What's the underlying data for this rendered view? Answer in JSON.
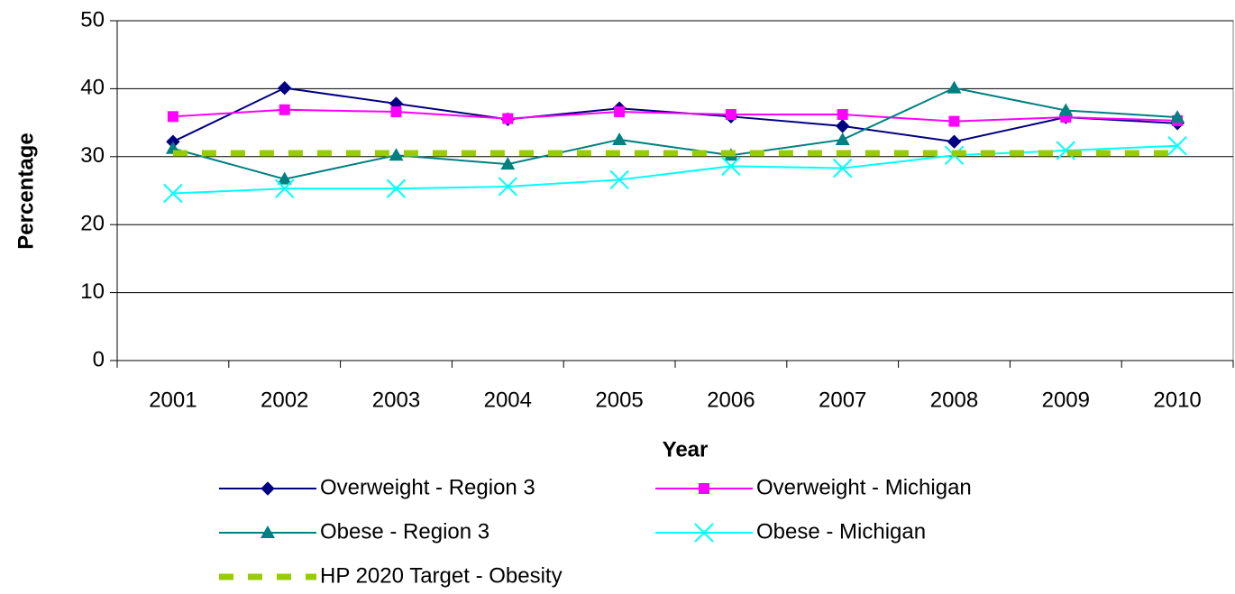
{
  "chart_data": {
    "type": "line",
    "x_label": "Year",
    "y_label": "Percentage",
    "categories": [
      "2001",
      "2002",
      "2003",
      "2004",
      "2005",
      "2006",
      "2007",
      "2008",
      "2009",
      "2010"
    ],
    "series": [
      {
        "name": "Overweight - Region 3",
        "color": "#000080",
        "marker": "diamond",
        "dash": false,
        "values": [
          32.2,
          40.1,
          37.8,
          35.5,
          37.1,
          35.9,
          34.5,
          32.2,
          35.8,
          34.9
        ]
      },
      {
        "name": "Overweight - Michigan",
        "color": "#ff00ff",
        "marker": "square",
        "dash": false,
        "values": [
          35.9,
          36.9,
          36.6,
          35.6,
          36.6,
          36.2,
          36.2,
          35.2,
          35.8,
          35.3
        ]
      },
      {
        "name": "Obese - Region 3",
        "color": "#008080",
        "marker": "triangle",
        "dash": false,
        "values": [
          31.2,
          26.7,
          30.2,
          28.9,
          32.5,
          30.2,
          32.5,
          40.1,
          36.8,
          35.8
        ]
      },
      {
        "name": "Obese - Michigan",
        "color": "#00ffff",
        "marker": "x",
        "dash": false,
        "values": [
          24.6,
          25.3,
          25.3,
          25.6,
          26.6,
          28.6,
          28.3,
          30.2,
          30.9,
          31.6
        ]
      },
      {
        "name": "HP 2020 Target - Obesity",
        "color": "#99cc00",
        "marker": "none",
        "dash": true,
        "values": [
          30.5,
          30.5,
          30.5,
          30.5,
          30.5,
          30.5,
          30.5,
          30.5,
          30.5,
          30.5
        ]
      }
    ],
    "ylim": [
      0,
      50
    ],
    "yticks": [
      0,
      10,
      20,
      30,
      40,
      50
    ],
    "grid": true,
    "legend": "bottom"
  }
}
